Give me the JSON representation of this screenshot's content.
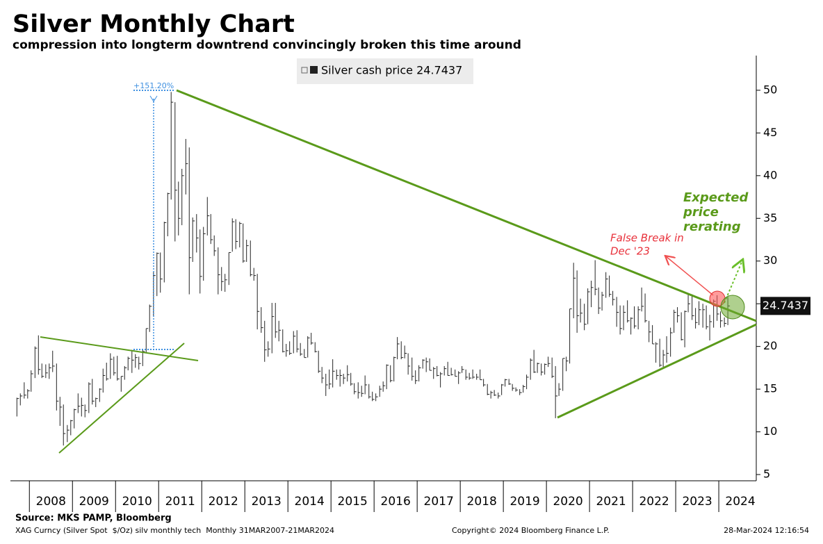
{
  "chart_data": {
    "type": "hlc",
    "title": "Silver Monthly Chart",
    "subtitle": "compression into longterm downtrend convincingly broken this time around",
    "xlim": [
      2007.56,
      2024.87
    ],
    "ylim": [
      4.27,
      54.06
    ],
    "yticks": [
      5,
      10,
      15,
      20,
      25,
      30,
      35,
      40,
      45,
      50
    ],
    "xticks": [
      {
        "value": 2008,
        "label": "2008"
      },
      {
        "value": 2009,
        "label": "2009"
      },
      {
        "value": 2010,
        "label": "2010"
      },
      {
        "value": 2011,
        "label": "2011"
      },
      {
        "value": 2012,
        "label": "2012"
      },
      {
        "value": 2013,
        "label": "2013"
      },
      {
        "value": 2014,
        "label": "2014"
      },
      {
        "value": 2015,
        "label": "2015"
      },
      {
        "value": 2016,
        "label": "2016"
      },
      {
        "value": 2017,
        "label": "2017"
      },
      {
        "value": 2018,
        "label": "2018"
      },
      {
        "value": 2019,
        "label": "2019"
      },
      {
        "value": 2020,
        "label": "2020"
      },
      {
        "value": 2021,
        "label": "2021"
      },
      {
        "value": 2022,
        "label": "2022"
      },
      {
        "value": 2023,
        "label": "2023"
      },
      {
        "value": 2024,
        "label": "2024"
      }
    ],
    "x": [
      2007.71,
      2007.79,
      2007.88,
      2007.96,
      2008.04,
      2008.13,
      2008.21,
      2008.29,
      2008.38,
      2008.46,
      2008.54,
      2008.63,
      2008.71,
      2008.79,
      2008.88,
      2008.96,
      2009.04,
      2009.13,
      2009.21,
      2009.29,
      2009.38,
      2009.46,
      2009.54,
      2009.63,
      2009.71,
      2009.79,
      2009.88,
      2009.96,
      2010.04,
      2010.13,
      2010.21,
      2010.29,
      2010.38,
      2010.46,
      2010.54,
      2010.63,
      2010.71,
      2010.79,
      2010.88,
      2010.96,
      2011.04,
      2011.13,
      2011.21,
      2011.29,
      2011.38,
      2011.46,
      2011.54,
      2011.63,
      2011.71,
      2011.79,
      2011.88,
      2011.96,
      2012.04,
      2012.13,
      2012.21,
      2012.29,
      2012.38,
      2012.46,
      2012.54,
      2012.63,
      2012.71,
      2012.79,
      2012.88,
      2012.96,
      2013.04,
      2013.13,
      2013.21,
      2013.29,
      2013.38,
      2013.46,
      2013.54,
      2013.63,
      2013.71,
      2013.79,
      2013.88,
      2013.96,
      2014.04,
      2014.13,
      2014.21,
      2014.29,
      2014.38,
      2014.46,
      2014.54,
      2014.63,
      2014.71,
      2014.79,
      2014.88,
      2014.96,
      2015.04,
      2015.13,
      2015.21,
      2015.29,
      2015.38,
      2015.46,
      2015.54,
      2015.63,
      2015.71,
      2015.79,
      2015.88,
      2015.96,
      2016.04,
      2016.13,
      2016.21,
      2016.29,
      2016.38,
      2016.46,
      2016.54,
      2016.63,
      2016.71,
      2016.79,
      2016.88,
      2016.96,
      2017.04,
      2017.13,
      2017.21,
      2017.29,
      2017.38,
      2017.46,
      2017.54,
      2017.63,
      2017.71,
      2017.79,
      2017.88,
      2017.96,
      2018.04,
      2018.13,
      2018.21,
      2018.29,
      2018.38,
      2018.46,
      2018.54,
      2018.63,
      2018.71,
      2018.79,
      2018.88,
      2018.96,
      2019.04,
      2019.13,
      2019.21,
      2019.29,
      2019.38,
      2019.46,
      2019.54,
      2019.63,
      2019.71,
      2019.79,
      2019.88,
      2019.96,
      2020.04,
      2020.13,
      2020.21,
      2020.29,
      2020.38,
      2020.46,
      2020.54,
      2020.63,
      2020.71,
      2020.79,
      2020.88,
      2020.96,
      2021.04,
      2021.13,
      2021.21,
      2021.29,
      2021.38,
      2021.46,
      2021.54,
      2021.63,
      2021.71,
      2021.79,
      2021.88,
      2021.96,
      2022.04,
      2022.13,
      2022.21,
      2022.29,
      2022.38,
      2022.46,
      2022.54,
      2022.63,
      2022.71,
      2022.79,
      2022.88,
      2022.96,
      2023.04,
      2023.13,
      2023.21,
      2023.29,
      2023.38,
      2023.46,
      2023.54,
      2023.63,
      2023.71,
      2023.79,
      2023.88,
      2023.96,
      2024.04,
      2024.13,
      2024.21
    ],
    "series": [
      {
        "name": "Silver cash price 24.7437",
        "color": "#222222",
        "high": [
          14.0,
          14.5,
          15.8,
          15.0,
          17.2,
          20.0,
          21.3,
          18.0,
          17.9,
          18.0,
          19.5,
          18.0,
          14.1,
          13.2,
          10.8,
          11.4,
          12.7,
          14.5,
          14.0,
          13.2,
          15.8,
          16.2,
          14.0,
          15.1,
          17.4,
          18.1,
          19.2,
          18.8,
          18.9,
          16.5,
          17.7,
          18.8,
          19.6,
          19.1,
          18.8,
          19.6,
          22.1,
          24.9,
          28.7,
          31.0,
          31.0,
          34.6,
          38.0,
          49.8,
          48.6,
          39.3,
          40.8,
          44.3,
          43.3,
          35.1,
          35.5,
          33.7,
          34.0,
          37.5,
          35.5,
          33.0,
          31.6,
          29.3,
          28.5,
          31.0,
          35.0,
          34.9,
          34.6,
          34.4,
          32.5,
          32.4,
          29.2,
          28.5,
          24.6,
          23.0,
          20.6,
          25.1,
          25.1,
          23.0,
          22.0,
          20.3,
          20.6,
          21.8,
          21.9,
          20.4,
          19.7,
          21.2,
          21.6,
          20.5,
          19.5,
          17.6,
          16.8,
          17.3,
          18.5,
          17.3,
          17.3,
          16.8,
          17.8,
          16.9,
          15.7,
          15.8,
          15.4,
          16.6,
          15.6,
          14.7,
          14.5,
          15.4,
          15.9,
          17.9,
          17.8,
          18.8,
          21.1,
          20.6,
          20.1,
          19.2,
          18.7,
          17.2,
          17.8,
          18.5,
          18.7,
          18.6,
          17.6,
          17.7,
          17.0,
          17.7,
          18.2,
          17.5,
          17.3,
          17.1,
          17.7,
          17.3,
          16.9,
          17.3,
          16.8,
          17.3,
          16.2,
          15.6,
          14.8,
          14.9,
          14.6,
          15.6,
          16.2,
          16.2,
          15.6,
          15.2,
          15.0,
          15.5,
          16.7,
          18.6,
          19.6,
          18.1,
          18.0,
          18.0,
          18.8,
          18.7,
          17.7,
          15.7,
          18.6,
          18.8,
          24.4,
          29.8,
          28.9,
          25.6,
          25.0,
          26.8,
          27.7,
          30.1,
          26.9,
          26.4,
          28.7,
          28.3,
          26.5,
          25.8,
          24.8,
          24.8,
          25.4,
          23.4,
          24.7,
          24.7,
          26.9,
          26.2,
          23.0,
          22.5,
          20.5,
          20.9,
          19.6,
          21.2,
          22.2,
          24.3,
          24.6,
          24.0,
          24.2,
          26.1,
          26.1,
          24.5,
          25.3,
          25.0,
          24.8,
          23.7,
          25.5,
          26.0,
          24.1,
          23.4,
          25.8
        ],
        "low": [
          11.8,
          13.1,
          13.9,
          13.9,
          14.7,
          16.3,
          16.7,
          16.3,
          16.3,
          16.2,
          17.0,
          12.5,
          10.7,
          8.4,
          8.8,
          9.6,
          10.4,
          12.2,
          11.8,
          11.7,
          12.2,
          13.2,
          12.9,
          13.5,
          14.6,
          16.0,
          16.2,
          16.6,
          16.0,
          14.7,
          16.1,
          17.2,
          16.9,
          17.5,
          17.3,
          17.7,
          19.2,
          21.7,
          23.5,
          25.9,
          26.3,
          27.5,
          32.9,
          37.2,
          32.3,
          33.0,
          34.2,
          37.8,
          26.1,
          29.9,
          31.0,
          26.2,
          27.7,
          33.0,
          32.0,
          30.6,
          26.1,
          26.5,
          26.4,
          27.2,
          31.1,
          31.4,
          31.6,
          29.8,
          29.9,
          28.2,
          27.7,
          22.0,
          21.6,
          18.2,
          18.8,
          19.2,
          21.0,
          20.6,
          19.3,
          18.8,
          19.0,
          19.2,
          19.3,
          18.9,
          18.7,
          18.7,
          20.2,
          19.3,
          16.9,
          15.7,
          14.2,
          15.0,
          15.2,
          16.1,
          15.3,
          15.6,
          15.9,
          15.4,
          14.4,
          13.9,
          14.1,
          14.4,
          13.9,
          13.6,
          13.6,
          14.1,
          14.7,
          15.0,
          15.8,
          15.9,
          18.5,
          18.5,
          18.6,
          16.7,
          16.0,
          15.6,
          15.9,
          17.4,
          17.0,
          17.2,
          16.2,
          16.5,
          15.2,
          16.6,
          16.6,
          16.6,
          16.5,
          15.6,
          16.9,
          16.1,
          16.1,
          16.2,
          16.1,
          16.1,
          15.3,
          14.3,
          13.9,
          14.2,
          13.9,
          14.3,
          15.3,
          15.5,
          14.8,
          14.7,
          14.3,
          14.6,
          15.0,
          16.1,
          16.9,
          16.9,
          16.6,
          16.7,
          17.6,
          16.3,
          11.6,
          14.2,
          14.8,
          17.1,
          18.0,
          23.3,
          21.6,
          22.8,
          21.9,
          22.6,
          24.6,
          26.0,
          23.8,
          24.2,
          25.7,
          25.8,
          24.8,
          22.3,
          21.4,
          21.9,
          22.8,
          21.4,
          22.1,
          22.0,
          24.1,
          22.8,
          20.5,
          20.3,
          18.1,
          17.6,
          17.6,
          18.1,
          18.8,
          21.6,
          22.8,
          20.7,
          19.9,
          24.0,
          23.1,
          22.1,
          22.5,
          22.2,
          22.0,
          20.7,
          22.2,
          23.0,
          22.2,
          22.3,
          22.5
        ],
        "close": [
          13.9,
          14.2,
          14.3,
          14.8,
          16.8,
          19.8,
          17.3,
          16.5,
          16.9,
          17.5,
          17.7,
          13.6,
          12.9,
          9.8,
          10.2,
          11.3,
          12.6,
          13.0,
          13.1,
          12.5,
          15.6,
          13.6,
          13.9,
          15.0,
          16.6,
          16.2,
          18.5,
          16.9,
          16.2,
          16.5,
          17.5,
          18.6,
          18.4,
          18.7,
          18.0,
          19.4,
          22.1,
          24.7,
          28.3,
          30.9,
          27.9,
          34.5,
          37.9,
          48.6,
          38.3,
          35.0,
          40.0,
          41.4,
          30.4,
          34.7,
          32.7,
          28.2,
          33.2,
          35.3,
          32.5,
          31.2,
          28.4,
          27.6,
          27.8,
          31.0,
          34.6,
          32.3,
          34.4,
          30.0,
          31.8,
          28.4,
          28.3,
          24.1,
          22.2,
          19.6,
          19.7,
          23.5,
          21.7,
          21.9,
          19.4,
          19.5,
          19.2,
          21.2,
          19.7,
          19.1,
          18.7,
          21.0,
          20.4,
          19.4,
          17.1,
          16.3,
          15.5,
          15.6,
          17.1,
          16.6,
          16.6,
          16.3,
          16.7,
          15.6,
          14.7,
          14.6,
          14.5,
          15.5,
          14.1,
          13.8,
          14.1,
          15.0,
          15.4,
          17.8,
          16.0,
          18.7,
          20.3,
          18.7,
          19.2,
          17.7,
          16.5,
          16.0,
          17.5,
          18.4,
          18.2,
          17.2,
          17.4,
          16.6,
          16.8,
          17.4,
          16.6,
          16.7,
          16.5,
          16.9,
          17.3,
          16.4,
          16.3,
          16.4,
          16.4,
          16.1,
          15.5,
          14.4,
          14.6,
          14.3,
          14.2,
          15.5,
          16.1,
          15.6,
          15.1,
          14.9,
          14.6,
          15.3,
          16.4,
          18.4,
          17.0,
          18.0,
          17.0,
          17.9,
          18.0,
          16.5,
          14.2,
          15.0,
          18.6,
          18.3,
          24.4,
          28.0,
          23.6,
          23.9,
          22.6,
          26.4,
          26.9,
          26.7,
          24.5,
          26.0,
          27.9,
          26.1,
          25.5,
          24.0,
          22.1,
          24.0,
          23.0,
          23.3,
          22.4,
          24.3,
          24.7,
          23.0,
          21.7,
          20.3,
          20.3,
          17.8,
          19.0,
          19.2,
          21.6,
          24.0,
          23.6,
          20.8,
          24.1,
          25.0,
          23.6,
          22.8,
          24.3,
          24.3,
          22.3,
          22.9,
          25.3,
          23.8,
          23.0,
          22.7,
          24.7437
        ]
      }
    ],
    "annotations": {
      "measure": "+151.20%",
      "false_break": [
        "False Break in",
        "Dec '23"
      ],
      "expected": [
        "Expected",
        "price",
        "rerating"
      ]
    },
    "source": "Source: MKS PAMP, Bloomberg",
    "footer": {
      "ticker": "XAG Curncy (Silver Spot  $/Oz) silv monthly tech  Monthly 31MAR2007-21MAR2024",
      "copyright": "Copyright© 2024 Bloomberg Finance L.P.",
      "timestamp": "28-Mar-2024 12:16:54"
    }
  }
}
